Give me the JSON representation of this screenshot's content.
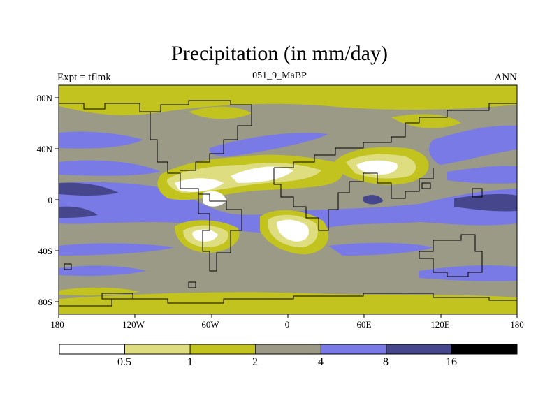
{
  "map": {
    "title": "Precipitation (in mm/day)",
    "left_label": "Expt = tflmk",
    "center_label": "051_9_MaBP",
    "right_label": "ANN",
    "lat_ticks": [
      "80N",
      "40N",
      "0",
      "40S",
      "80S"
    ],
    "lon_ticks": [
      "180",
      "120W",
      "60W",
      "0",
      "60E",
      "120E",
      "180"
    ]
  },
  "legend": {
    "colors": [
      "#ffffff",
      "#dede80",
      "#c3c31f",
      "#9a9a86",
      "#7a7ae6",
      "#46468c",
      "#000000"
    ],
    "labels": [
      "0.5",
      "1",
      "2",
      "4",
      "8",
      "16"
    ]
  },
  "palette": {
    "very_wet": "#46468c",
    "wet": "#7a7ae6",
    "moderate": "#9a9a86",
    "dry": "#c3c31f",
    "very_dry": "#dede80",
    "arid": "#ffffff",
    "coast": "#000000"
  }
}
